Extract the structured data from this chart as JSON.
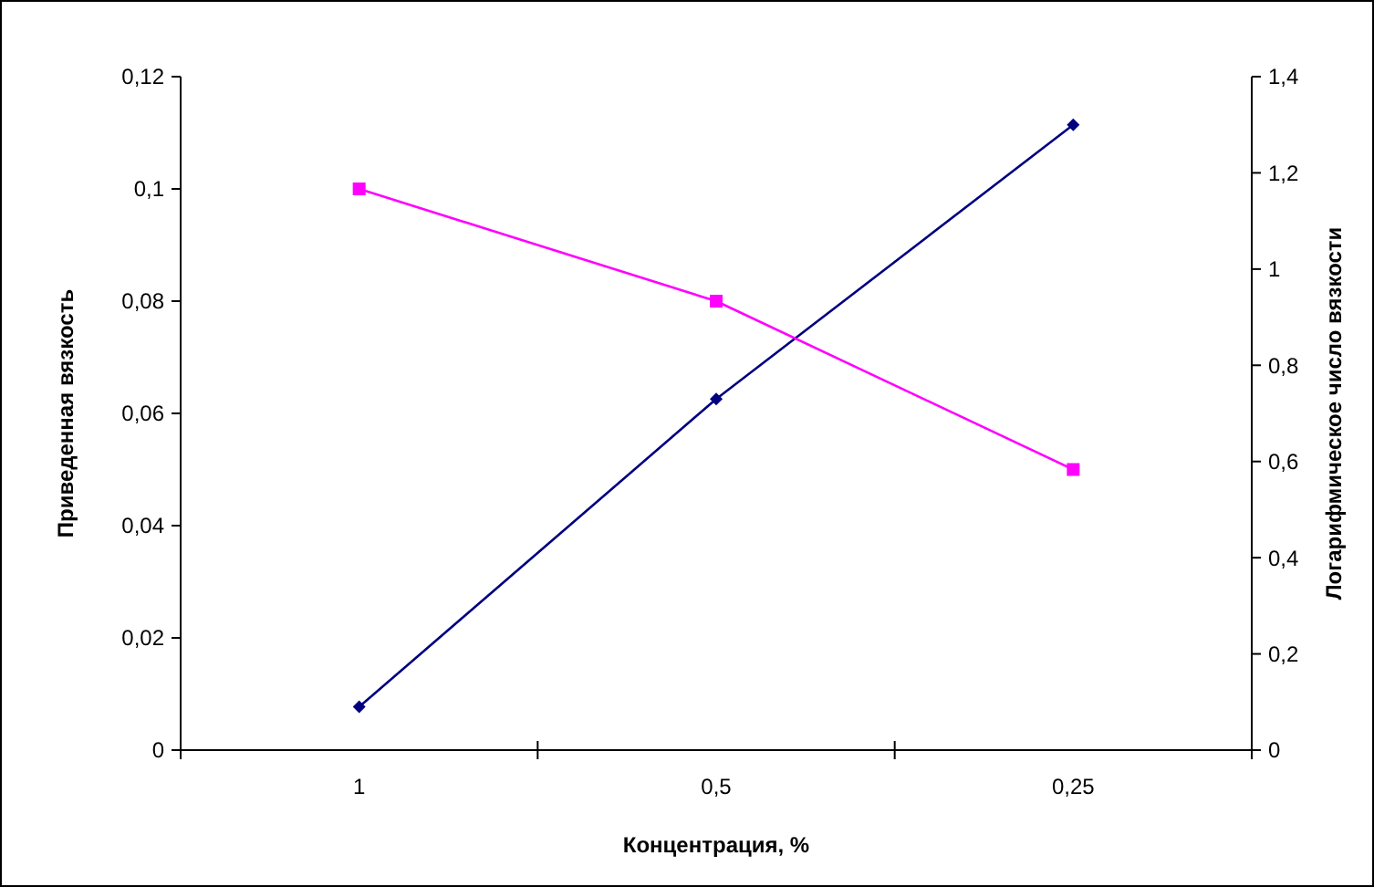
{
  "chart_data": {
    "type": "line",
    "xlabel": "Концентрация, %",
    "ylabel": "Приведенная вязкость",
    "y2label": "Логарифмическое число вязкости",
    "categories": [
      "1",
      "0,5",
      "0,25"
    ],
    "series": [
      {
        "color": "#000080",
        "values": [
          0.09,
          0.73,
          1.3
        ],
        "axis": "y2",
        "marker": "diamond"
      },
      {
        "color": "#ff00ff",
        "values": [
          0.1,
          0.08,
          0.05
        ],
        "marker": "square"
      }
    ],
    "ylim": [
      0,
      0.12
    ],
    "yticks": [
      {
        "value": 0,
        "label": "0"
      },
      {
        "value": 0.02,
        "label": "0,02"
      },
      {
        "value": 0.04,
        "label": "0,04"
      },
      {
        "value": 0.06,
        "label": "0,06"
      },
      {
        "value": 0.08,
        "label": "0,08"
      },
      {
        "value": 0.1,
        "label": "0,1"
      },
      {
        "value": 0.12,
        "label": "0,12"
      }
    ],
    "y2lim": [
      0,
      1.4
    ],
    "y2ticks": [
      {
        "value": 0,
        "label": "0"
      },
      {
        "value": 0.2,
        "label": "0,2"
      },
      {
        "value": 0.4,
        "label": "0,4"
      },
      {
        "value": 0.6,
        "label": "0,6"
      },
      {
        "value": 0.8,
        "label": "0,8"
      },
      {
        "value": 1,
        "label": "1"
      },
      {
        "value": 1.2,
        "label": "1,2"
      },
      {
        "value": 1.4,
        "label": "1,4"
      }
    ],
    "grid": false
  }
}
